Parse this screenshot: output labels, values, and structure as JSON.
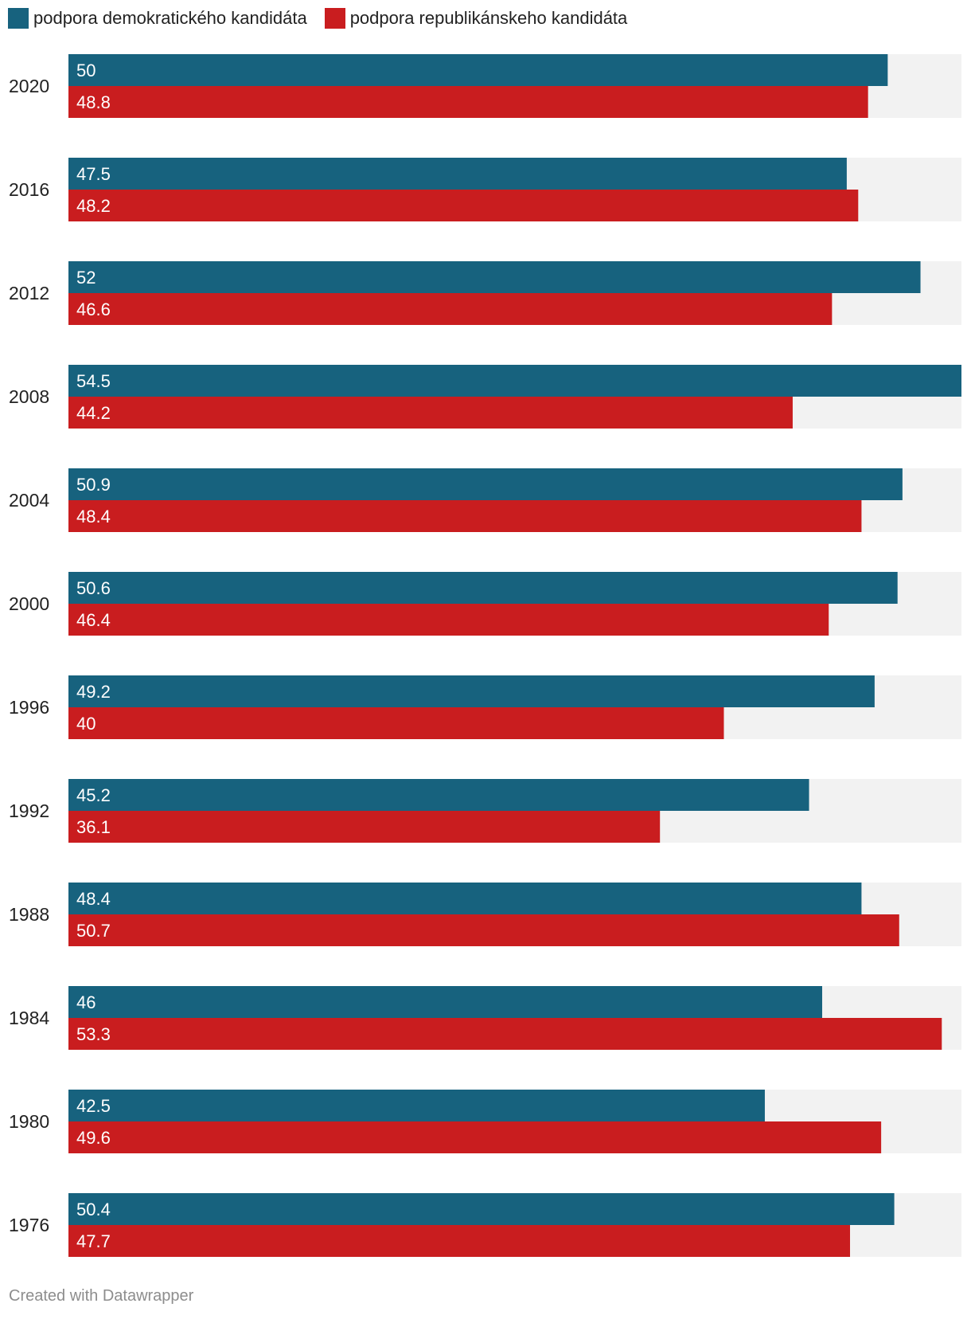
{
  "legend": {
    "dem_label": "podpora demokratického kandidáta",
    "rep_label": "podpora republikánskeho kandidáta"
  },
  "colors": {
    "dem": "#17627e",
    "rep": "#c91d1f",
    "track": "#f2f2f2"
  },
  "footer": {
    "credit": "Created with Datawrapper"
  },
  "chart_data": {
    "type": "bar",
    "orientation": "horizontal",
    "title": "",
    "xlabel": "",
    "ylabel": "",
    "xlim": [
      0,
      54.5
    ],
    "legend_position": "top-left",
    "grid": false,
    "categories": [
      "2020",
      "2016",
      "2012",
      "2008",
      "2004",
      "2000",
      "1996",
      "1992",
      "1988",
      "1984",
      "1980",
      "1976"
    ],
    "series": [
      {
        "name": "podpora demokratického kandidáta",
        "values": [
          50,
          47.5,
          52,
          54.5,
          50.9,
          50.6,
          49.2,
          45.2,
          48.4,
          46,
          42.5,
          50.4
        ]
      },
      {
        "name": "podpora republikánskeho kandidáta",
        "values": [
          48.8,
          48.2,
          46.6,
          44.2,
          48.4,
          46.4,
          40,
          36.1,
          50.7,
          53.3,
          49.6,
          47.7
        ]
      }
    ]
  }
}
